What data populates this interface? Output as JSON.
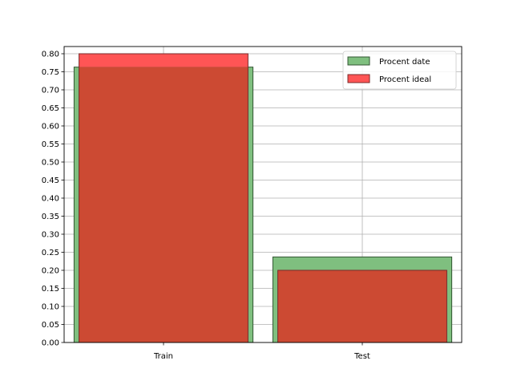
{
  "chart_data": {
    "type": "bar",
    "categories": [
      "Train",
      "Test"
    ],
    "series": [
      {
        "name": "Procent date",
        "values": [
          0.763,
          0.237
        ],
        "color": "#4a9a4a",
        "fill": "#7fbf7f",
        "edge": "#335533"
      },
      {
        "name": "Procent ideal",
        "values": [
          0.8,
          0.2
        ],
        "color": "#ff4d4d",
        "fill": "#ff5555",
        "edge": "#7a2a2a"
      }
    ],
    "overlap_color": "#cc4a33",
    "ylim": [
      0,
      0.82
    ],
    "yticks": [
      "0.00",
      "0.05",
      "0.10",
      "0.15",
      "0.20",
      "0.25",
      "0.30",
      "0.35",
      "0.40",
      "0.45",
      "0.50",
      "0.55",
      "0.60",
      "0.65",
      "0.70",
      "0.75",
      "0.80"
    ],
    "grid": true,
    "legend_position": "top-right",
    "title": "",
    "xlabel": "",
    "ylabel": ""
  }
}
